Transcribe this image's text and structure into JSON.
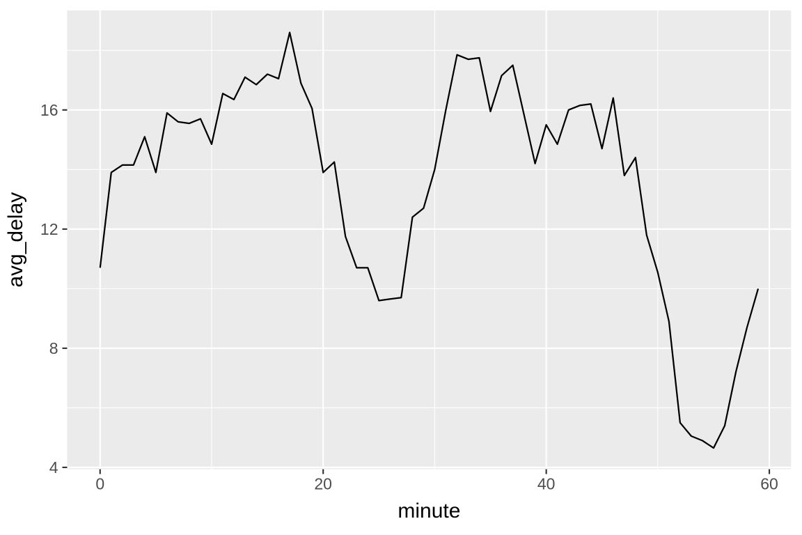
{
  "figure": {
    "xlabel": "minute",
    "ylabel": "avg_delay"
  },
  "chart_data": {
    "type": "line",
    "title": "",
    "xlabel": "minute",
    "ylabel": "avg_delay",
    "legend": false,
    "grid": true,
    "x": [
      0,
      1,
      2,
      3,
      4,
      5,
      6,
      7,
      8,
      9,
      10,
      11,
      12,
      13,
      14,
      15,
      16,
      17,
      18,
      19,
      20,
      21,
      22,
      23,
      24,
      25,
      26,
      27,
      28,
      29,
      30,
      31,
      32,
      33,
      34,
      35,
      36,
      37,
      38,
      39,
      40,
      41,
      42,
      43,
      44,
      45,
      46,
      47,
      48,
      49,
      50,
      51,
      52,
      53,
      54,
      55,
      56,
      57,
      58,
      59
    ],
    "series": [
      {
        "name": "avg_delay",
        "values": [
          10.7,
          13.9,
          14.15,
          14.15,
          15.1,
          13.9,
          15.9,
          15.6,
          15.55,
          15.7,
          14.85,
          16.55,
          16.35,
          17.1,
          16.85,
          17.2,
          17.05,
          18.6,
          16.9,
          16.05,
          13.9,
          14.25,
          11.75,
          10.7,
          10.7,
          9.6,
          9.65,
          9.7,
          12.4,
          12.7,
          14.0,
          16.0,
          17.85,
          17.7,
          17.75,
          15.95,
          17.15,
          17.5,
          15.85,
          14.2,
          15.5,
          14.85,
          16.0,
          16.15,
          16.2,
          14.7,
          16.4,
          13.8,
          14.4,
          11.8,
          10.55,
          8.9,
          5.5,
          5.05,
          4.9,
          4.65,
          5.4,
          7.2,
          8.7,
          10.0
        ]
      }
    ],
    "xlim": [
      -2.95,
      61.95
    ],
    "ylim": [
      3.94,
      19.34
    ],
    "x_ticks": [
      0,
      20,
      40,
      60
    ],
    "x_tick_labels": [
      "0",
      "20",
      "40",
      "60"
    ],
    "y_ticks": [
      4,
      8,
      12,
      16
    ],
    "y_tick_labels": [
      "4",
      "8",
      "12",
      "16"
    ],
    "x_minor_ticks": [
      10,
      30,
      50
    ],
    "y_minor_ticks": [
      6,
      10,
      14,
      18
    ],
    "style": {
      "panel_bg": "#EBEBEB",
      "grid_color": "#FFFFFF",
      "line_color": "#000000",
      "tick_color": "#333333",
      "tick_label_color": "#4D4D4D",
      "axis_title_color": "#000000",
      "background": "#FFFFFF"
    }
  }
}
